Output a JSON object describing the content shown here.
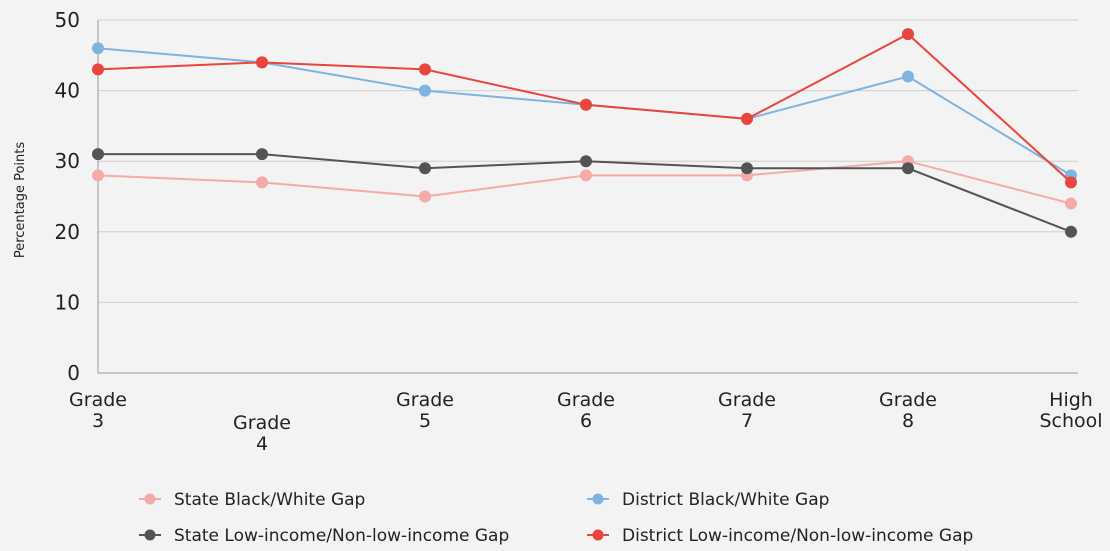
{
  "chart_data": {
    "type": "line",
    "title": "",
    "xlabel": "",
    "ylabel": "Percentage Points",
    "ylim": [
      0,
      50
    ],
    "yticks": [
      0,
      10,
      20,
      30,
      40,
      50
    ],
    "grid": true,
    "legend_position": "bottom",
    "categories": [
      [
        "Grade",
        "3"
      ],
      [
        "Grade",
        "4"
      ],
      [
        "Grade",
        "5"
      ],
      [
        "Grade",
        "6"
      ],
      [
        "Grade",
        "7"
      ],
      [
        "Grade",
        "8"
      ],
      [
        "High",
        "School"
      ]
    ],
    "series": [
      {
        "name": "State Black/White Gap",
        "color": "#f4aaa6",
        "values": [
          28,
          27,
          25,
          28,
          28,
          30,
          24
        ]
      },
      {
        "name": "District Black/White Gap",
        "color": "#7fb3e0",
        "values": [
          46,
          44,
          40,
          38,
          36,
          42,
          28
        ]
      },
      {
        "name": "State Low-income/Non-low-income Gap",
        "color": "#545454",
        "values": [
          31,
          31,
          29,
          30,
          29,
          29,
          20
        ]
      },
      {
        "name": "District Low-income/Non-low-income Gap",
        "color": "#e8453c",
        "values": [
          43,
          44,
          43,
          38,
          36,
          48,
          27
        ]
      }
    ]
  }
}
